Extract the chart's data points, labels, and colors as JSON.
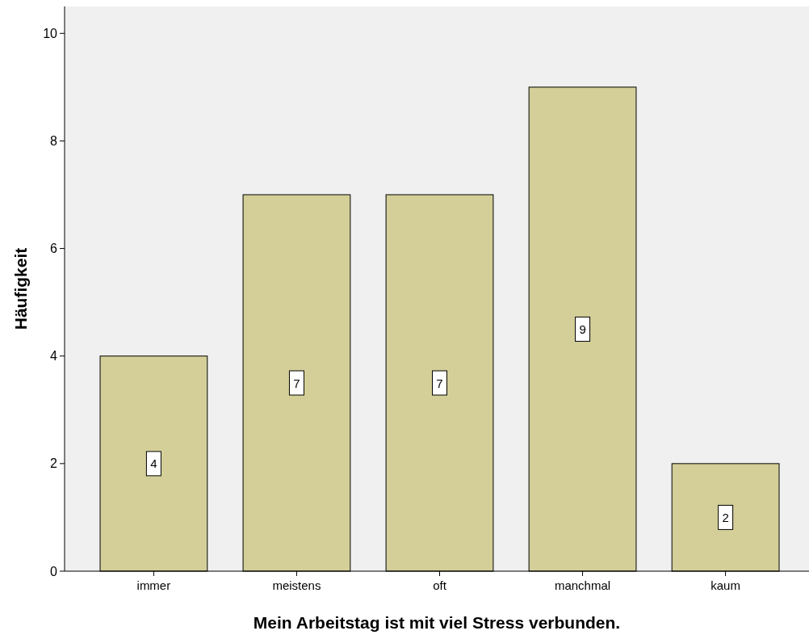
{
  "chart_data": {
    "type": "bar",
    "xlabel": "Mein Arbeitstag ist mit viel Stress verbunden.",
    "ylabel": "Häufigkeit",
    "categories": [
      "immer",
      "meistens",
      "oft",
      "manchmal",
      "kaum"
    ],
    "values": [
      4,
      7,
      7,
      9,
      2
    ],
    "color": "#d4cf98",
    "ylim": [
      0,
      10.5
    ],
    "yticks": [
      0,
      2,
      4,
      6,
      8,
      10
    ],
    "grid": false,
    "data_labels": true
  }
}
